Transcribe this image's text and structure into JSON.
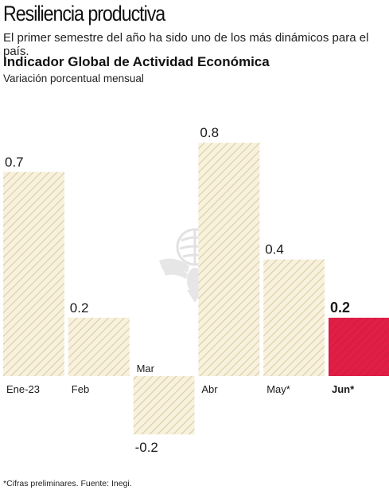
{
  "header": {
    "headline": "Resiliencia productiva",
    "dek": "El primer semestre del año ha sido uno de los más dinámicos para el país."
  },
  "chart_data": {
    "type": "bar",
    "title": "Indicador Global de Actividad Económica",
    "subtitle": "Variación porcentual mensual",
    "categories": [
      "Ene-23",
      "Feb",
      "Mar",
      "Abr",
      "May*",
      "Jun*"
    ],
    "values": [
      0.7,
      0.2,
      -0.2,
      0.8,
      0.4,
      0.2
    ],
    "value_labels": [
      "0.7",
      "0.2",
      "-0.2",
      "0.8",
      "0.4",
      "0.2"
    ],
    "highlight_index": 5,
    "colors": {
      "bar_fill": "#f7f1dd",
      "bar_hatch": "#d8cba0",
      "highlight": "#e01e46",
      "text": "#1a1a1a"
    },
    "xlabel": "",
    "ylabel": "",
    "ylim": [
      -0.2,
      0.8
    ],
    "grid": false,
    "legend": "none"
  },
  "footnote": "*Cifras preliminares. Fuente: Inegi.",
  "watermark": {
    "icon": "eagle-emblem-icon"
  }
}
